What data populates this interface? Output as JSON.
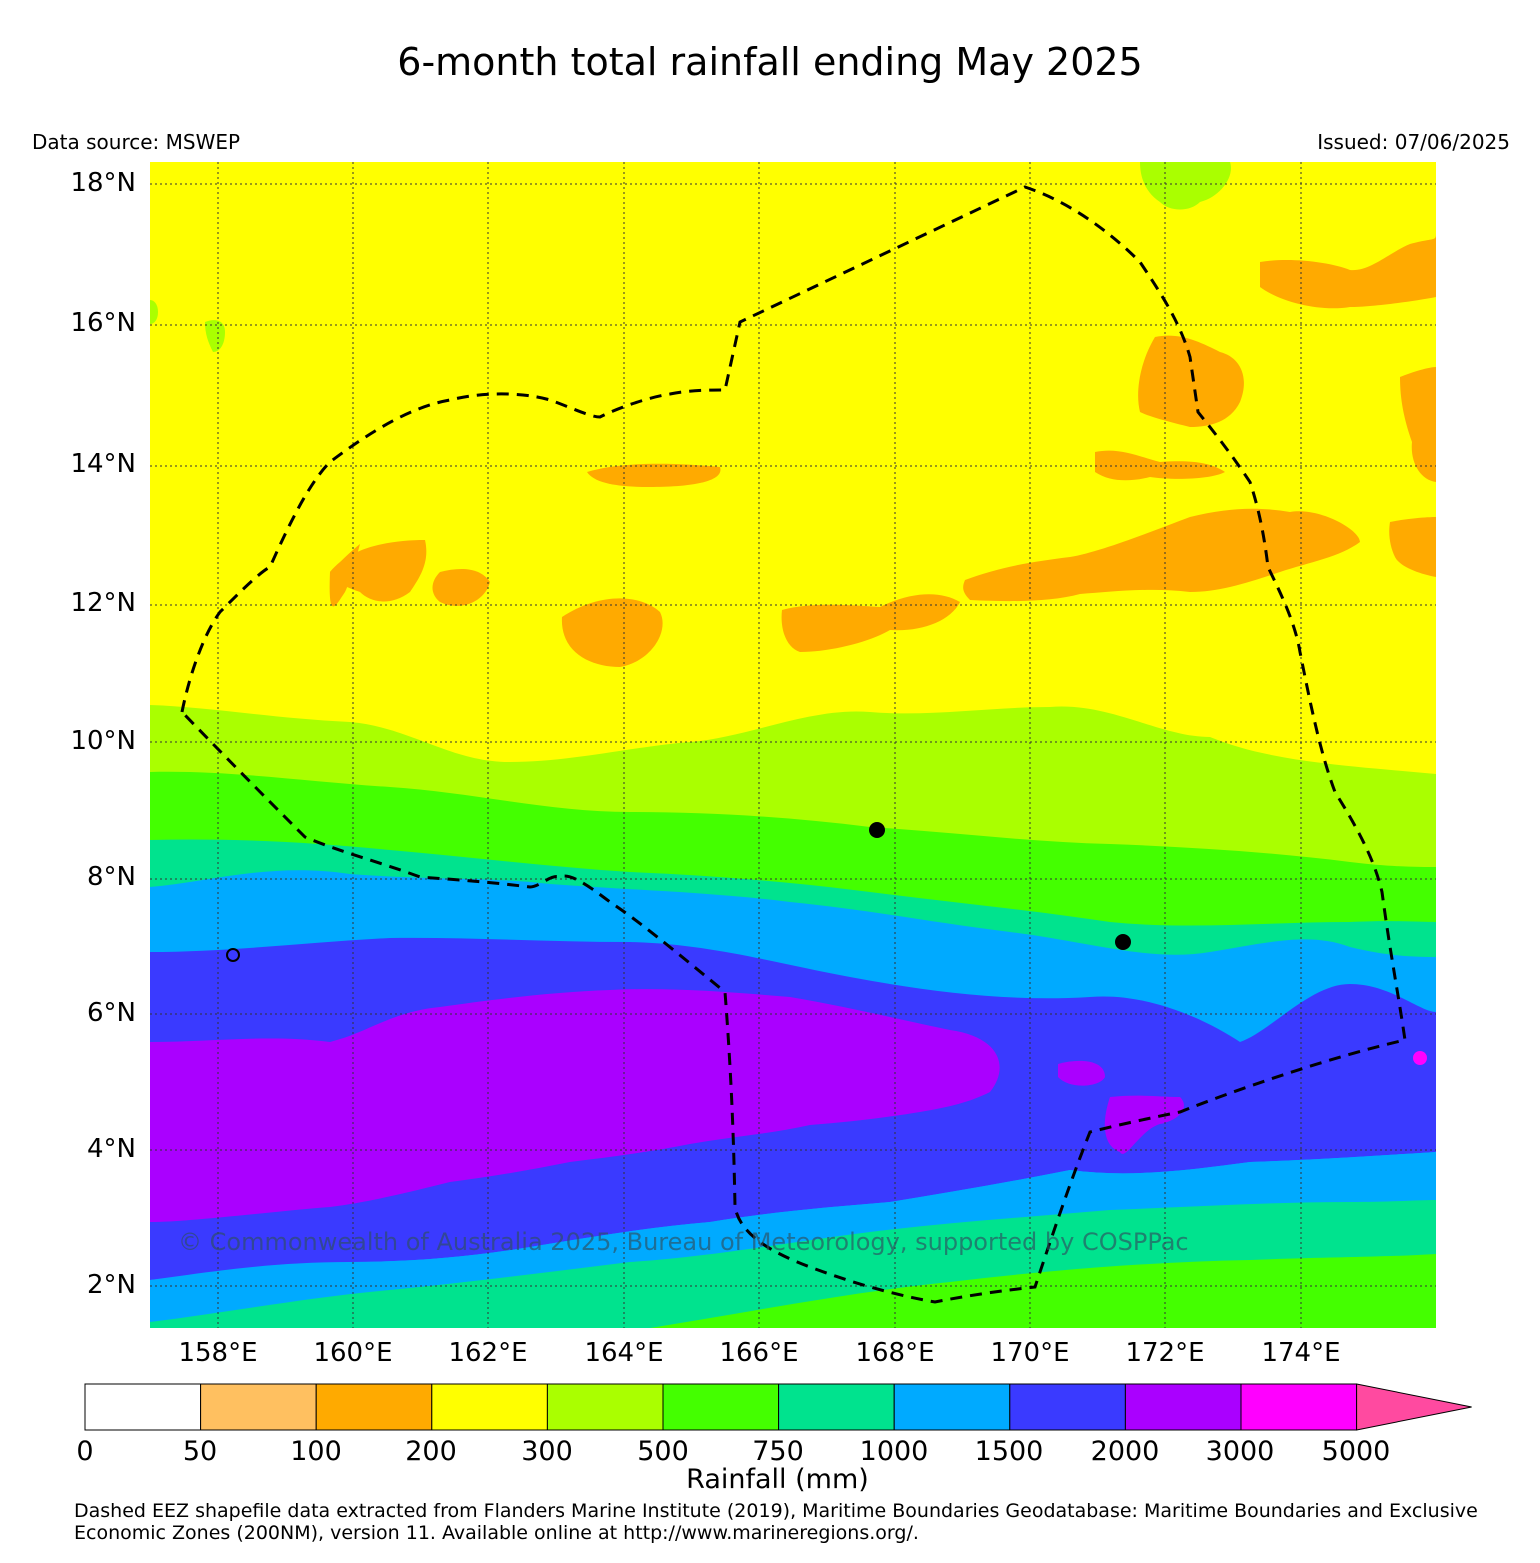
{
  "title": "6-month total rainfall ending May 2025",
  "data_source": "Data source: MSWEP",
  "issued": "Issued: 07/06/2025",
  "copyright": "© Commonwealth of Australia 2025, Bureau of Meteorology, supported by COSPPac",
  "lat_labels": [
    "18°N",
    "16°N",
    "14°N",
    "12°N",
    "10°N",
    "8°N",
    "6°N",
    "4°N",
    "2°N"
  ],
  "lon_labels": [
    "158°E",
    "160°E",
    "162°E",
    "164°E",
    "166°E",
    "168°E",
    "170°E",
    "172°E",
    "174°E"
  ],
  "colorbar": {
    "title": "Rainfall (mm)",
    "ticks": [
      "0",
      "50",
      "100",
      "200",
      "300",
      "500",
      "750",
      "1000",
      "1500",
      "2000",
      "3000",
      "5000"
    ],
    "colors": [
      "#ffffff",
      "#ffc060",
      "#ffaa00",
      "#ffff00",
      "#aaff00",
      "#44ff00",
      "#00e38e",
      "#00aaff",
      "#3a3aff",
      "#aa00ff",
      "#ff00ff",
      "#ff4aa0"
    ]
  },
  "footnote": "Dashed EEZ shapefile data extracted from Flanders Marine Institute (2019), Maritime Boundaries Geodatabase: Maritime Boundaries and Exclusive Economic Zones (200NM), version 11. Available online at http://www.marineregions.org/."
}
